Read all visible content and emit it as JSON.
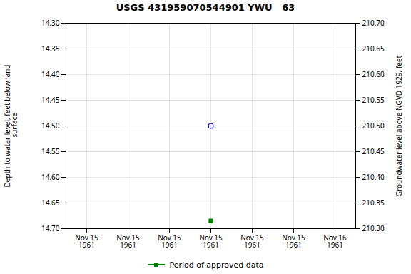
{
  "chart_data": {
    "type": "scatter",
    "title": "USGS 431959070544901 YWU   63",
    "ylabel": "Depth to water level, feet below land\n surface",
    "y2label": "Groundwater level above NGVD 1929, feet",
    "categories": [
      "Nov 15\n1961",
      "Nov 15\n1961",
      "Nov 15\n1961",
      "Nov 15\n1961",
      "Nov 15\n1961",
      "Nov 15\n1961",
      "Nov 16\n1961"
    ],
    "series": [
      {
        "color": "#0000cc",
        "marker": "circle_open",
        "values": [
          null,
          null,
          null,
          14.5,
          null,
          null,
          null
        ]
      },
      {
        "name": "Period of approved data",
        "color": "#008000",
        "marker": "square",
        "values": [
          null,
          null,
          null,
          14.685,
          null,
          null,
          null
        ]
      }
    ],
    "ylim": [
      14.7,
      14.3
    ],
    "yticks": [
      {
        "value": 14.3,
        "label": "14.30"
      },
      14.35,
      {
        "value": 14.4,
        "label": "14.40"
      },
      14.45,
      {
        "value": 14.5,
        "label": "14.50"
      },
      14.55,
      {
        "value": 14.6,
        "label": "14.60"
      },
      14.65,
      {
        "value": 14.7,
        "label": "14.70"
      }
    ],
    "y2lim": [
      210.3,
      210.7
    ],
    "y2ticks": [
      {
        "value": 210.7,
        "label": "210.70"
      },
      210.65,
      {
        "value": 210.6,
        "label": "210.60"
      },
      210.55,
      {
        "value": 210.5,
        "label": "210.50"
      },
      210.45,
      {
        "value": 210.4,
        "label": "210.40"
      },
      210.35,
      {
        "value": 210.3,
        "label": "210.30"
      }
    ],
    "grid": true,
    "legend": "bottom"
  }
}
